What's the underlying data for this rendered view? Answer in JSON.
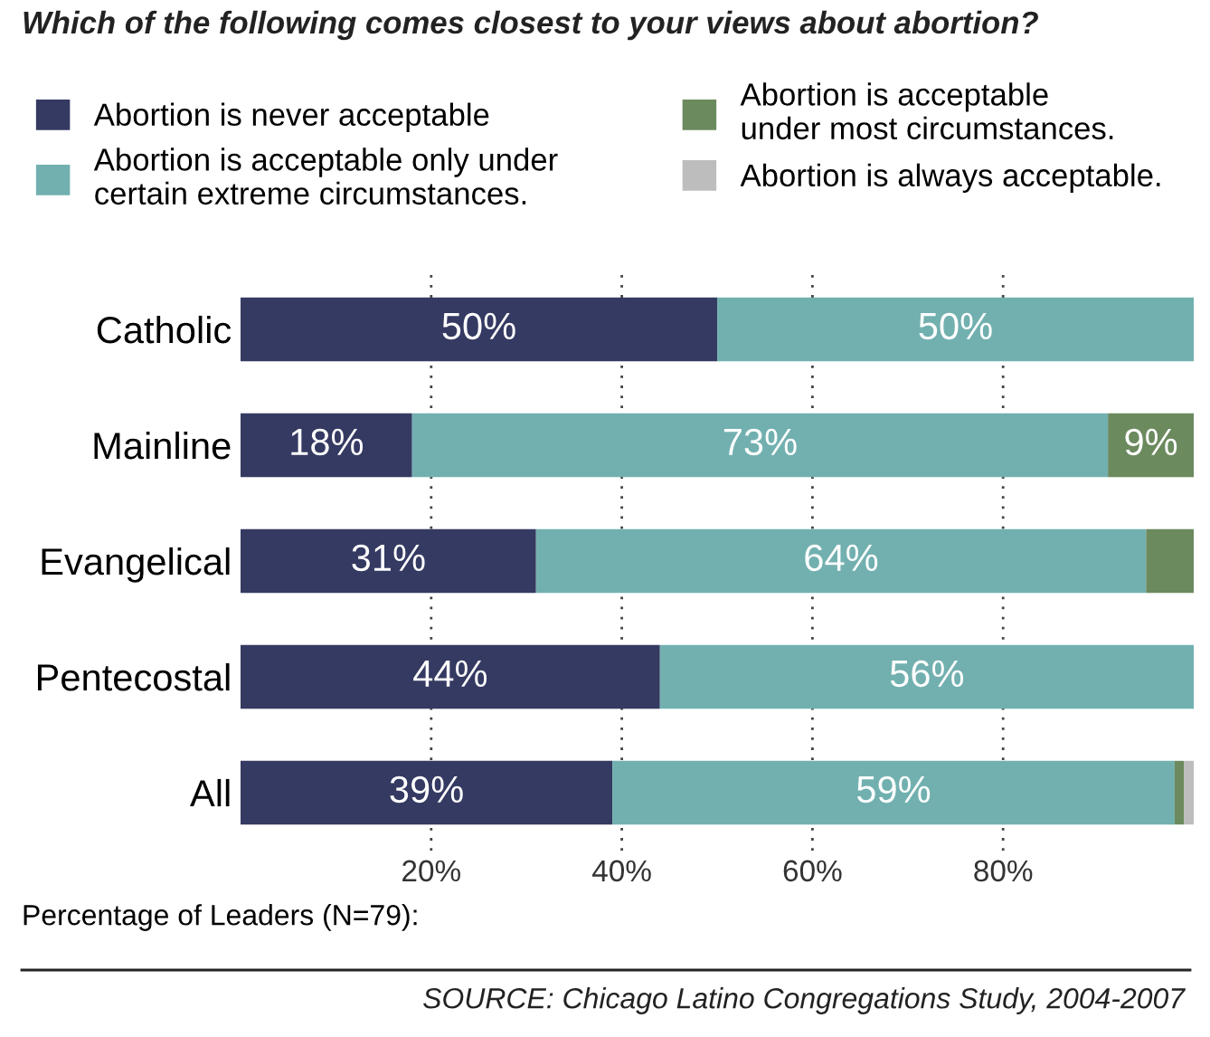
{
  "chart_data": {
    "type": "bar",
    "orientation": "horizontal",
    "stacked": true,
    "title": "Which of the following comes closest to your views about abortion?",
    "xlabel": "Percentage of Leaders (N=79):",
    "categories": [
      "Catholic",
      "Mainline",
      "Evangelical",
      "Pentecostal",
      "All"
    ],
    "series": [
      {
        "name": "Abortion is never acceptable",
        "color": "#353a62",
        "values": [
          50,
          18,
          31,
          44,
          39
        ],
        "value_labels": [
          "50%",
          "18%",
          "31%",
          "44%",
          "39%"
        ]
      },
      {
        "name": "Abortion is acceptable only under\ncertain extreme circumstances.",
        "color": "#72b0b0",
        "values": [
          50,
          73,
          64,
          56,
          59
        ],
        "value_labels": [
          "50%",
          "73%",
          "64%",
          "56%",
          "59%"
        ]
      },
      {
        "name": "Abortion is acceptable\nunder most circumstances.",
        "color": "#6b8a5e",
        "values": [
          0,
          9,
          5,
          0,
          1
        ],
        "value_labels": [
          null,
          "9%",
          null,
          null,
          null
        ]
      },
      {
        "name": "Abortion is always acceptable.",
        "color": "#bdbdbd",
        "values": [
          0,
          0,
          0,
          0,
          1
        ],
        "value_labels": [
          null,
          null,
          null,
          null,
          null
        ]
      }
    ],
    "xlim": [
      0,
      100
    ],
    "xticks": [
      {
        "value": 20,
        "label": "20%"
      },
      {
        "value": 40,
        "label": "40%"
      },
      {
        "value": 60,
        "label": "60%"
      },
      {
        "value": 80,
        "label": "80%"
      }
    ],
    "grid": "x",
    "legend": "top",
    "annotations": [
      "SOURCE: Chicago Latino Congregations Study, 2004-2007"
    ]
  }
}
